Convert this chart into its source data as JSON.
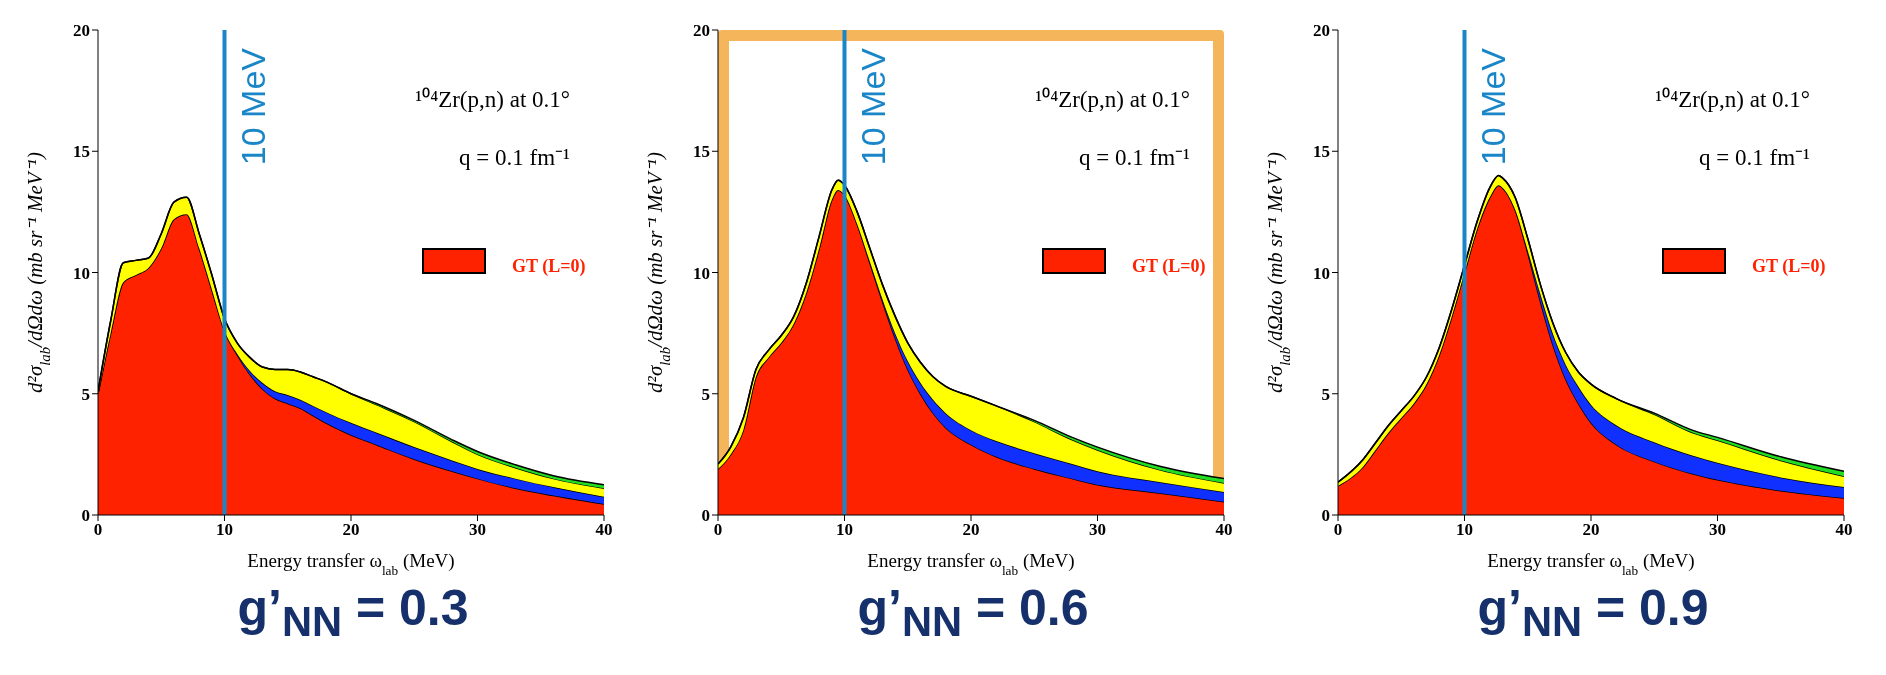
{
  "chart_data": [
    {
      "type": "area",
      "stacked": true,
      "title": "g’$_{NN}$ = 0.3",
      "xlabel": "Energy transfer ω$_{lab}$ (MeV)",
      "ylabel": "d²σ$_{lab}$/dΩdω (mb sr⁻¹ MeV⁻¹)",
      "x": [
        0,
        1,
        2,
        3,
        4,
        5,
        6,
        7,
        8,
        9,
        10,
        11,
        12,
        13,
        14,
        15,
        16,
        17,
        18,
        20,
        22,
        25,
        28,
        30,
        33,
        36,
        40
      ],
      "series": [
        {
          "name": "GT (L=0)",
          "color": "#ff2200",
          "values": [
            5,
            7.5,
            9.6,
            9.9,
            10.2,
            11,
            12.2,
            12.4,
            11,
            9.3,
            7.6,
            6.6,
            5.8,
            5.2,
            4.8,
            4.6,
            4.4,
            4.1,
            3.8,
            3.3,
            2.9,
            2.3,
            1.8,
            1.5,
            1.1,
            0.8,
            0.45
          ]
        },
        {
          "color": "#1030ff",
          "values": [
            0,
            0,
            0,
            0,
            0,
            0,
            0,
            0,
            0,
            0,
            0,
            0.05,
            0.15,
            0.25,
            0.3,
            0.35,
            0.35,
            0.4,
            0.45,
            0.5,
            0.5,
            0.5,
            0.45,
            0.4,
            0.4,
            0.35,
            0.3
          ]
        },
        {
          "color": "#ffff00",
          "values": [
            0.1,
            0.5,
            0.8,
            0.6,
            0.4,
            0.6,
            0.7,
            0.7,
            0.6,
            0.6,
            0.5,
            0.45,
            0.55,
            0.65,
            0.9,
            1.05,
            1.15,
            1.2,
            1.25,
            1.2,
            1.15,
            1.05,
            0.77,
            0.6,
            0.45,
            0.35,
            0.35
          ]
        },
        {
          "color": "#22dd22",
          "values": [
            0,
            0,
            0,
            0,
            0,
            0,
            0,
            0,
            0,
            0,
            0,
            0,
            0,
            0,
            0,
            0,
            0,
            0,
            0,
            0,
            0.05,
            0.05,
            0.08,
            0.12,
            0.12,
            0.12,
            0.15
          ]
        }
      ],
      "xlim": [
        0,
        40
      ],
      "xticks": [
        0,
        10,
        20,
        30,
        40
      ],
      "ylim": [
        0,
        20
      ],
      "yticks": [
        0,
        5,
        10,
        15,
        20
      ],
      "legend": "right",
      "ref_lines": [
        {
          "axis": "x",
          "value": 10,
          "label": "10 MeV",
          "color": "#1a86c8"
        }
      ],
      "annotations": [
        "¹⁰⁴Zr(p,n) at 0.1°",
        "q = 0.1 fm⁻¹"
      ]
    },
    {
      "type": "area",
      "stacked": true,
      "title": "g’$_{NN}$ = 0.6",
      "xlabel": "Energy transfer ω$_{lab}$ (MeV)",
      "ylabel": "d²σ$_{lab}$/dΩdω (mb sr⁻¹ MeV⁻¹)",
      "x": [
        0,
        1,
        2,
        3,
        4,
        5,
        6,
        7,
        8,
        9,
        9.5,
        10,
        11,
        12,
        13,
        14,
        15,
        16,
        17,
        18,
        20,
        22,
        25,
        28,
        30,
        35,
        40
      ],
      "series": [
        {
          "name": "GT (L=0)",
          "color": "#ff2200",
          "values": [
            1.9,
            2.5,
            3.5,
            5.7,
            6.5,
            7.1,
            7.9,
            9.2,
            11,
            13,
            13.4,
            13.2,
            12,
            10.4,
            8.8,
            7.3,
            6,
            5,
            4.2,
            3.6,
            2.9,
            2.4,
            1.9,
            1.5,
            1.25,
            0.9,
            0.55
          ]
        },
        {
          "color": "#1030ff",
          "values": [
            0,
            0,
            0,
            0,
            0,
            0,
            0,
            0,
            0,
            0,
            0,
            0,
            0,
            0.05,
            0.1,
            0.2,
            0.35,
            0.45,
            0.55,
            0.6,
            0.6,
            0.65,
            0.65,
            0.6,
            0.55,
            0.45,
            0.4
          ]
        },
        {
          "color": "#ffff00",
          "values": [
            0.2,
            0.3,
            0.5,
            0.3,
            0.3,
            0.3,
            0.3,
            0.4,
            0.5,
            0.4,
            0.4,
            0.4,
            0.5,
            0.55,
            0.6,
            0.7,
            0.75,
            0.85,
            0.95,
            1.1,
            1.4,
            1.45,
            1.3,
            1.0,
            0.88,
            0.5,
            0.37
          ]
        },
        {
          "color": "#22dd22",
          "values": [
            0,
            0,
            0,
            0,
            0,
            0,
            0,
            0,
            0,
            0,
            0,
            0,
            0,
            0,
            0,
            0,
            0,
            0,
            0,
            0,
            0,
            0,
            0.05,
            0.1,
            0.12,
            0.15,
            0.18
          ]
        }
      ],
      "xlim": [
        0,
        40
      ],
      "xticks": [
        0,
        10,
        20,
        30,
        40
      ],
      "ylim": [
        0,
        20
      ],
      "yticks": [
        0,
        5,
        10,
        15,
        20
      ],
      "legend": "right",
      "ref_lines": [
        {
          "axis": "x",
          "value": 10,
          "label": "10 MeV",
          "color": "#1a86c8"
        }
      ],
      "annotations": [
        "¹⁰⁴Zr(p,n) at 0.1°",
        "q = 0.1 fm⁻¹"
      ]
    },
    {
      "type": "area",
      "stacked": true,
      "title": "g’$_{NN}$ = 0.9",
      "xlabel": "Energy transfer ω$_{lab}$ (MeV)",
      "ylabel": "d²σ$_{lab}$/dΩdω (mb sr⁻¹ MeV⁻¹)",
      "x": [
        0,
        2,
        3,
        4,
        5,
        6,
        7,
        8,
        9,
        10,
        11,
        12,
        12.7,
        13,
        14,
        15,
        16,
        17,
        18,
        19,
        20,
        22,
        25,
        28,
        30,
        35,
        40
      ],
      "series": [
        {
          "name": "GT (L=0)",
          "color": "#ff2200",
          "values": [
            1.2,
            2.0,
            2.7,
            3.4,
            4.0,
            4.6,
            5.4,
            6.6,
            8.2,
            10.0,
            11.8,
            13.1,
            13.6,
            13.5,
            12.6,
            10.8,
            8.8,
            7.0,
            5.6,
            4.6,
            3.8,
            2.9,
            2.2,
            1.7,
            1.45,
            1.0,
            0.7
          ]
        },
        {
          "color": "#1030ff",
          "values": [
            0,
            0,
            0,
            0,
            0,
            0,
            0,
            0,
            0,
            0,
            0,
            0,
            0,
            0,
            0,
            0.1,
            0.3,
            0.45,
            0.6,
            0.7,
            0.75,
            0.8,
            0.8,
            0.75,
            0.7,
            0.55,
            0.45
          ]
        },
        {
          "color": "#ffff00",
          "values": [
            0.15,
            0.3,
            0.3,
            0.3,
            0.3,
            0.3,
            0.3,
            0.3,
            0.3,
            0.3,
            0.3,
            0.4,
            0.4,
            0.4,
            0.5,
            0.5,
            0.4,
            0.45,
            0.5,
            0.6,
            0.85,
            1.1,
            1.15,
            0.95,
            0.93,
            0.7,
            0.45
          ]
        },
        {
          "color": "#22dd22",
          "values": [
            0,
            0,
            0,
            0,
            0,
            0,
            0,
            0,
            0,
            0,
            0,
            0,
            0,
            0,
            0,
            0,
            0,
            0,
            0,
            0,
            0,
            0,
            0.05,
            0.1,
            0.12,
            0.15,
            0.2
          ]
        }
      ],
      "xlim": [
        0,
        40
      ],
      "xticks": [
        0,
        10,
        20,
        30,
        40
      ],
      "ylim": [
        0,
        20
      ],
      "yticks": [
        0,
        5,
        10,
        15,
        20
      ],
      "legend": "right",
      "ref_lines": [
        {
          "axis": "x",
          "value": 10,
          "label": "10 MeV",
          "color": "#1a86c8"
        }
      ],
      "annotations": [
        "¹⁰⁴Zr(p,n) at 0.1°",
        "q = 0.1 fm⁻¹"
      ]
    }
  ]
}
